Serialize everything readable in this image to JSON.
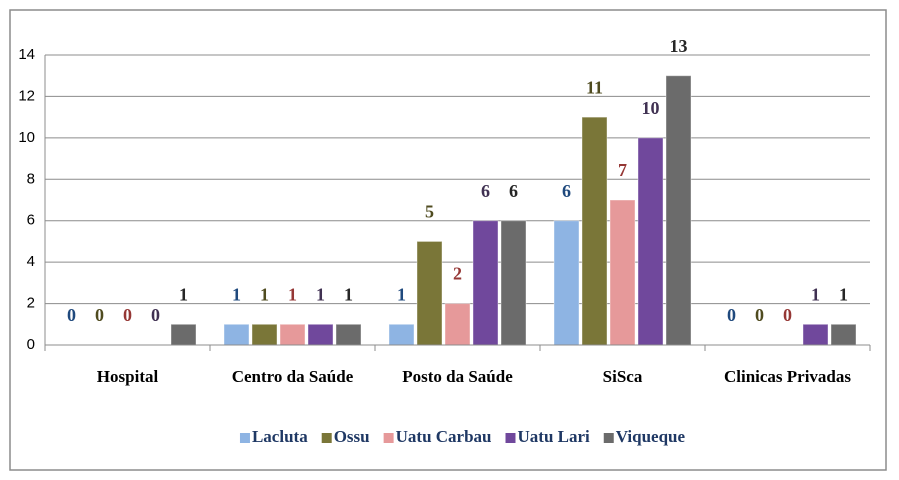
{
  "chart_data": {
    "type": "bar",
    "categories": [
      "Hospital",
      "Centro da Saúde",
      "Posto da Saúde",
      "SiSca",
      "Clinicas Privadas"
    ],
    "series": [
      {
        "name": "Lacluta",
        "color": "#8eb4e3",
        "label_color": "#1f497d",
        "values": [
          0,
          1,
          1,
          6,
          0
        ]
      },
      {
        "name": "Ossu",
        "color": "#7a7638",
        "label_color": "#4f4b1f",
        "values": [
          0,
          1,
          5,
          11,
          0
        ]
      },
      {
        "name": "Uatu Carbau",
        "color": "#e6999a",
        "label_color": "#953735",
        "values": [
          0,
          1,
          2,
          7,
          0
        ]
      },
      {
        "name": "Uatu Lari",
        "color": "#70489c",
        "label_color": "#403152",
        "values": [
          0,
          1,
          6,
          10,
          1
        ]
      },
      {
        "name": "Viqueque",
        "color": "#6b6b6b",
        "label_color": "#262626",
        "values": [
          1,
          1,
          6,
          13,
          1
        ]
      }
    ],
    "ylim": [
      0,
      14
    ],
    "yticks": [
      0,
      2,
      4,
      6,
      8,
      10,
      12,
      14
    ],
    "grid": true,
    "legend": "bottom"
  }
}
